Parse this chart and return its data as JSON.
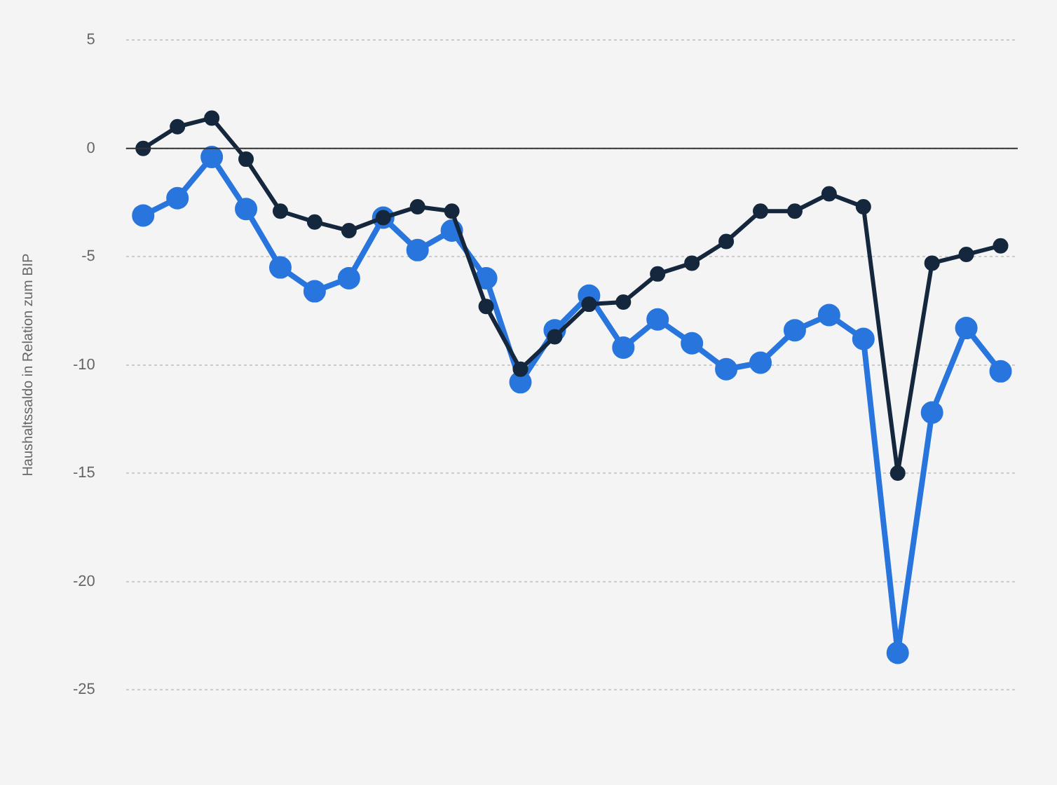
{
  "chart_data": {
    "type": "line",
    "ylabel": "Haushaltssaldo in Relation zum BIP",
    "categories": [
      null,
      null,
      null,
      null,
      null,
      null,
      null,
      null,
      null,
      null,
      null,
      null,
      null,
      null,
      null,
      null,
      null,
      null,
      null,
      null,
      null,
      null,
      null,
      null,
      null,
      null
    ],
    "series": [
      {
        "color": "#14273d",
        "values": [
          0,
          1.0,
          1.4,
          -0.5,
          -2.9,
          -3.4,
          -3.8,
          -3.2,
          -2.7,
          -2.9,
          -7.3,
          -10.2,
          -8.7,
          -7.2,
          -7.1,
          -5.8,
          -5.3,
          -4.3,
          -2.9,
          -2.9,
          -2.1,
          -2.7,
          -15.0,
          -5.3,
          -4.9,
          -4.5
        ]
      },
      {
        "color": "#2876dd",
        "values": [
          -3.1,
          -2.3,
          -0.4,
          -2.8,
          -5.5,
          -6.6,
          -6.0,
          -3.2,
          -4.7,
          -3.8,
          -6.0,
          -10.8,
          -8.4,
          -6.8,
          -9.2,
          -7.9,
          -9.0,
          -10.2,
          -9.9,
          -8.4,
          -7.7,
          -8.8,
          -23.3,
          -12.2,
          -8.3,
          -10.3
        ]
      }
    ],
    "ylim": [
      -25,
      5
    ],
    "yticks": [
      -25,
      -20,
      -15,
      -10,
      -5,
      0,
      5
    ],
    "ref_lines": [
      {
        "axis": "y",
        "value": 0,
        "color": "#333333"
      }
    ],
    "grid": "y",
    "tick_labels": "y",
    "marker": "circle",
    "line_style": "solid",
    "legend": false
  }
}
